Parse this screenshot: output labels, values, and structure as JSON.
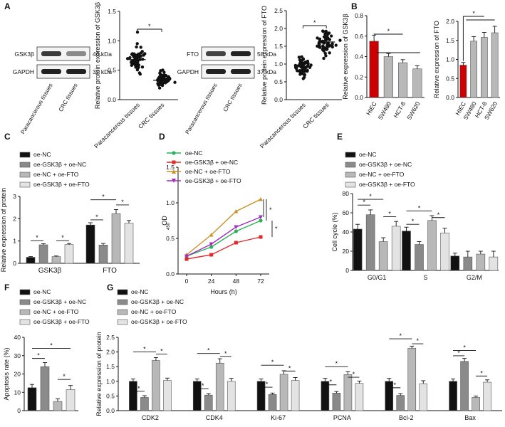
{
  "chart_data": [
    {
      "panel": "A",
      "type": "scatter",
      "ylabel": "Relative protein expression of GSK3β",
      "categories": [
        "Paracancerous tissues",
        "CRC tissues"
      ],
      "ylim": [
        0,
        1.5
      ],
      "yticks": [
        0.0,
        0.5,
        1.0,
        1.5
      ],
      "means": [
        0.68,
        0.33
      ],
      "sd": [
        0.12,
        0.07
      ],
      "n_points": 60,
      "significance": "*",
      "blot": {
        "bands": [
          {
            "label": "GSK3β",
            "kda": "46 kDa"
          },
          {
            "label": "GAPDH",
            "kda": "37 kDa"
          }
        ],
        "lanes": [
          "Paracancerous tissues",
          "CRC tissues"
        ]
      }
    },
    {
      "panel": "A",
      "type": "scatter",
      "ylabel": "Relative protein expression of FTO",
      "categories": [
        "Paracancerous tissues",
        "CRC tissues"
      ],
      "ylim": [
        0,
        2.5
      ],
      "yticks": [
        0.0,
        0.5,
        1.0,
        1.5,
        2.0,
        2.5
      ],
      "means": [
        0.93,
        1.62
      ],
      "sd": [
        0.15,
        0.17
      ],
      "n_points": 60,
      "significance": "*",
      "blot": {
        "bands": [
          {
            "label": "FTO",
            "kda": "58 kDa"
          },
          {
            "label": "GAPDH",
            "kda": "37 kDa"
          }
        ],
        "lanes": [
          "Paracancerous tissues",
          "CRC tissues"
        ]
      }
    },
    {
      "panel": "B",
      "type": "bar",
      "ylabel": "Relative expression of GSK3β",
      "categories": [
        "HIEC",
        "SW480",
        "HCT-8",
        "SW620"
      ],
      "values": [
        0.55,
        0.4,
        0.34,
        0.28
      ],
      "errors": [
        0.06,
        0.03,
        0.03,
        0.03
      ],
      "ylim": [
        0,
        0.8
      ],
      "yticks": [
        0.0,
        0.2,
        0.4,
        0.6,
        0.8
      ],
      "significance": "*"
    },
    {
      "panel": "B",
      "type": "bar",
      "ylabel": "Relative expression of FTO",
      "categories": [
        "HIEC",
        "SW480",
        "HCT-8",
        "SW620"
      ],
      "values": [
        0.85,
        1.48,
        1.58,
        1.7
      ],
      "errors": [
        0.07,
        0.12,
        0.13,
        0.17
      ],
      "ylim": [
        0,
        2.0
      ],
      "yticks": [
        0.0,
        0.5,
        1.0,
        1.5,
        2.0
      ],
      "significance": "*"
    },
    {
      "panel": "C",
      "type": "bar",
      "ylabel": "Relative expression of protein",
      "categories": [
        "GSK3β",
        "FTO"
      ],
      "series": [
        {
          "name": "oe-NC",
          "values": [
            0.27,
            1.72
          ],
          "errors": [
            0.03,
            0.1
          ]
        },
        {
          "name": "oe-GSK3β + oe-NC",
          "values": [
            0.83,
            0.82
          ],
          "errors": [
            0.05,
            0.07
          ]
        },
        {
          "name": "oe-NC + oe-FTO",
          "values": [
            0.3,
            2.23
          ],
          "errors": [
            0.03,
            0.18
          ]
        },
        {
          "name": "oe-GSK3β + oe-FTO",
          "values": [
            0.84,
            1.8
          ],
          "errors": [
            0.05,
            0.12
          ]
        }
      ],
      "ylim": [
        0,
        3
      ],
      "yticks": [
        0,
        1,
        2,
        3
      ],
      "significance": "*"
    },
    {
      "panel": "D",
      "type": "line",
      "xlabel": "Hours (h)",
      "ylabel": "OD",
      "ylabel_sub": "450",
      "x": [
        0,
        24,
        48,
        72
      ],
      "series": [
        {
          "name": "oe-NC",
          "values": [
            0.25,
            0.38,
            0.6,
            0.75
          ],
          "color": "#2bb05b"
        },
        {
          "name": "oe-GSK3β + oe-NC",
          "values": [
            0.21,
            0.27,
            0.44,
            0.52
          ],
          "color": "#e02a2a"
        },
        {
          "name": "oe-NC + oe-FTO",
          "values": [
            0.27,
            0.55,
            0.88,
            1.05
          ],
          "color": "#c8922a"
        },
        {
          "name": "oe-GSK3β + oe-FTO",
          "values": [
            0.25,
            0.42,
            0.66,
            0.8
          ],
          "color": "#a32dc4"
        }
      ],
      "ylim": [
        0,
        1.5
      ],
      "yticks": [
        0.0,
        0.5,
        1.0,
        1.5
      ],
      "significance": "*"
    },
    {
      "panel": "E",
      "type": "bar",
      "ylabel": "Cell cycle (%)",
      "categories": [
        "G0/G1",
        "S",
        "G2/M"
      ],
      "series": [
        {
          "name": "oe-NC",
          "values": [
            43,
            41,
            15
          ],
          "errors": [
            5,
            4,
            3
          ]
        },
        {
          "name": "oe-GSK3β + oe-NC",
          "values": [
            58,
            27,
            14
          ],
          "errors": [
            5,
            3,
            6
          ]
        },
        {
          "name": "oe-NC + oe-FTO",
          "values": [
            30,
            52,
            17
          ],
          "errors": [
            4,
            5,
            3
          ]
        },
        {
          "name": "oe-GSK3β + oe-FTO",
          "values": [
            46,
            39,
            14
          ],
          "errors": [
            5,
            5,
            6
          ]
        }
      ],
      "ylim": [
        0,
        80
      ],
      "yticks": [
        0,
        20,
        40,
        60,
        80
      ],
      "significance": "*"
    },
    {
      "panel": "F",
      "type": "bar",
      "ylabel": "Apoptosis rate (%)",
      "categories": [
        ""
      ],
      "series": [
        {
          "name": "oe-NC",
          "values": [
            12.5
          ],
          "errors": [
            1.8
          ]
        },
        {
          "name": "oe-GSK3β + oe-NC",
          "values": [
            24
          ],
          "errors": [
            2.2
          ]
        },
        {
          "name": "oe-NC + oe-FTO",
          "values": [
            5
          ],
          "errors": [
            1.5
          ]
        },
        {
          "name": "oe-GSK3β + oe-FTO",
          "values": [
            11.5
          ],
          "errors": [
            2.2
          ]
        }
      ],
      "ylim": [
        0,
        40
      ],
      "yticks": [
        0,
        10,
        20,
        30,
        40
      ],
      "significance": "*"
    },
    {
      "panel": "G",
      "type": "bar",
      "ylabel": "Relative expression of protein",
      "categories": [
        "CDK2",
        "CDK4",
        "Ki-67",
        "PCNA",
        "Bcl-2",
        "Bax"
      ],
      "series": [
        {
          "name": "oe-NC",
          "values": [
            1.0,
            1.0,
            1.0,
            1.0,
            1.0,
            1.0
          ],
          "errors": [
            0.08,
            0.08,
            0.08,
            0.1,
            0.1,
            0.08
          ]
        },
        {
          "name": "oe-GSK3β + oe-NC",
          "values": [
            0.45,
            0.53,
            0.55,
            0.6,
            0.52,
            1.68
          ],
          "errors": [
            0.06,
            0.05,
            0.05,
            0.05,
            0.06,
            0.1
          ]
        },
        {
          "name": "oe-NC + oe-FTO",
          "values": [
            1.71,
            1.62,
            1.24,
            1.23,
            2.13,
            0.45
          ],
          "errors": [
            0.1,
            0.15,
            0.12,
            0.1,
            0.07,
            0.05
          ]
        },
        {
          "name": "oe-GSK3β + oe-FTO",
          "values": [
            1.03,
            1.0,
            1.03,
            0.93,
            0.92,
            0.97
          ],
          "errors": [
            0.08,
            0.1,
            0.1,
            0.08,
            0.1,
            0.08
          ]
        }
      ],
      "ylim": [
        0,
        2.5
      ],
      "yticks": [
        0.0,
        0.5,
        1.0,
        1.5,
        2.0,
        2.5
      ],
      "significance": "*"
    }
  ],
  "panel_labels": [
    "A",
    "B",
    "C",
    "D",
    "E",
    "F",
    "G"
  ],
  "legend_labels": [
    "oe-NC",
    "oe-GSK3β + oe-NC",
    "oe-NC + oe-FTO",
    "oe-GSK3β + oe-FTO"
  ],
  "colors": {
    "black": "#111111",
    "dark_gray": "#8a8a8a",
    "mid_gray": "#b8b8b8",
    "light_gray": "#e3e3e3",
    "outline": "#555555"
  }
}
